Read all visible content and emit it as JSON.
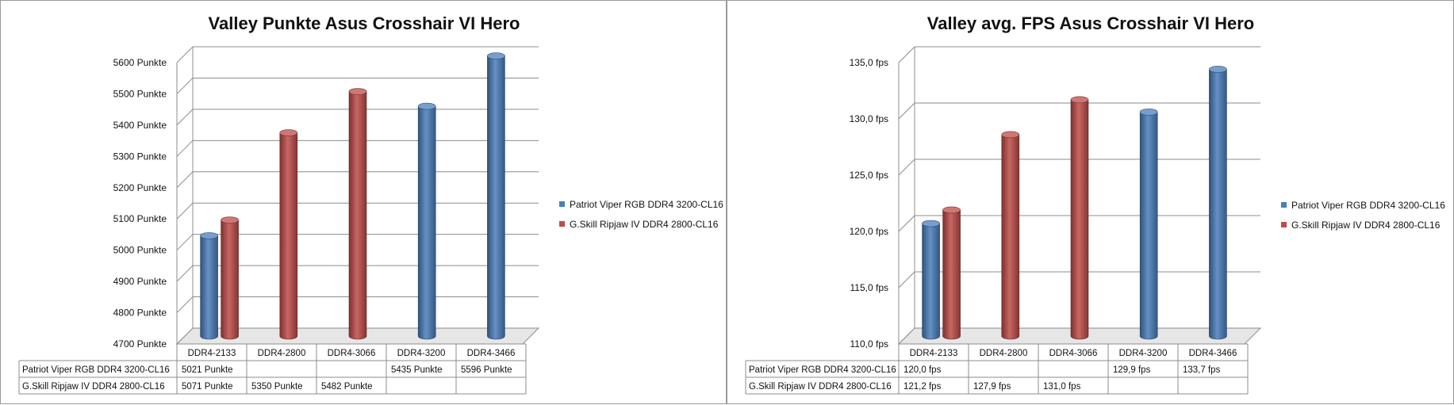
{
  "chart_data": [
    {
      "type": "bar",
      "title": "Valley Punkte Asus Crosshair VI Hero",
      "categories": [
        "DDR4-2133",
        "DDR4-2800",
        "DDR4-3066",
        "DDR4-3200",
        "DDR4-3466"
      ],
      "ylim": [
        4700,
        5600
      ],
      "yticks": [
        4700,
        4800,
        4900,
        5000,
        5100,
        5200,
        5300,
        5400,
        5500,
        5600
      ],
      "ytick_labels": [
        "4700 Punkte",
        "4800 Punkte",
        "4900 Punkte",
        "5000 Punkte",
        "5100 Punkte",
        "5200 Punkte",
        "5300 Punkte",
        "5400 Punkte",
        "5500 Punkte",
        "5600 Punkte"
      ],
      "grid": true,
      "legend_position": "right",
      "series": [
        {
          "name": "Patriot Viper RGB DDR4 3200-CL16",
          "color": "#4a7ebb",
          "values": [
            5021,
            null,
            null,
            5435,
            5596
          ],
          "labels": [
            "5021 Punkte",
            "",
            "",
            "5435 Punkte",
            "5596 Punkte"
          ]
        },
        {
          "name": "G.Skill Ripjaw  IV DDR4 2800-CL16",
          "color": "#be4b48",
          "values": [
            5071,
            5350,
            5482,
            null,
            null
          ],
          "labels": [
            "5071 Punkte",
            "5350 Punkte",
            "5482 Punkte",
            "",
            ""
          ]
        }
      ]
    },
    {
      "type": "bar",
      "title": "Valley avg. FPS Asus Crosshair VI Hero",
      "categories": [
        "DDR4-2133",
        "DDR4-2800",
        "DDR4-3066",
        "DDR4-3200",
        "DDR4-3466"
      ],
      "ylim": [
        110,
        135
      ],
      "yticks": [
        110,
        115,
        120,
        125,
        130,
        135
      ],
      "ytick_labels": [
        "110,0 fps",
        "115,0 fps",
        "120,0 fps",
        "125,0 fps",
        "130,0 fps",
        "135,0 fps"
      ],
      "grid": true,
      "legend_position": "right",
      "series": [
        {
          "name": "Patriot Viper RGB DDR4 3200-CL16",
          "color": "#4a7ebb",
          "values": [
            120.0,
            null,
            null,
            129.9,
            133.7
          ],
          "labels": [
            "120,0 fps",
            "",
            "",
            "129,9 fps",
            "133,7 fps"
          ]
        },
        {
          "name": "G.Skill Ripjaw  IV DDR4 2800-CL16",
          "color": "#be4b48",
          "values": [
            121.2,
            127.9,
            131.0,
            null,
            null
          ],
          "labels": [
            "121,2 fps",
            "127,9 fps",
            "131,0 fps",
            "",
            ""
          ]
        }
      ]
    }
  ]
}
